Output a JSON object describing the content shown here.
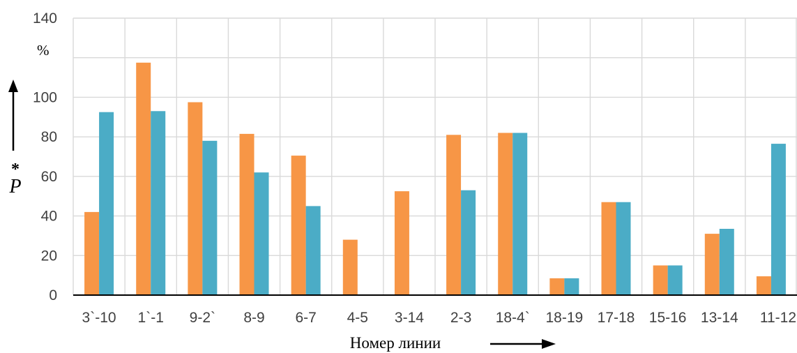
{
  "chart_data": {
    "type": "bar",
    "title": "",
    "xlabel": "Номер линии",
    "ylabel": "P",
    "ylabel_superscript": "*",
    "y_unit": "%",
    "ylim": [
      0,
      140
    ],
    "y_ticks": [
      0,
      20,
      40,
      60,
      80,
      100,
      140
    ],
    "grid": true,
    "legend": "none",
    "categories": [
      "3`-10",
      "1`-1",
      "9-2`",
      "8-9",
      "6-7",
      "4-5",
      "3-14",
      "2-3",
      "18-4`",
      "18-19",
      "17-18",
      "15-16",
      "13-14",
      "11-12"
    ],
    "series": [
      {
        "color": "#f79646",
        "values": [
          42,
          117.5,
          97.5,
          81.5,
          70.5,
          28,
          52.5,
          81,
          82,
          8.5,
          47,
          15,
          31,
          9.5
        ]
      },
      {
        "color": "#4bacc6",
        "values": [
          92.5,
          93,
          78,
          62,
          45,
          0,
          0,
          53,
          82,
          8.5,
          47,
          15,
          33.5,
          76.5
        ]
      }
    ]
  }
}
